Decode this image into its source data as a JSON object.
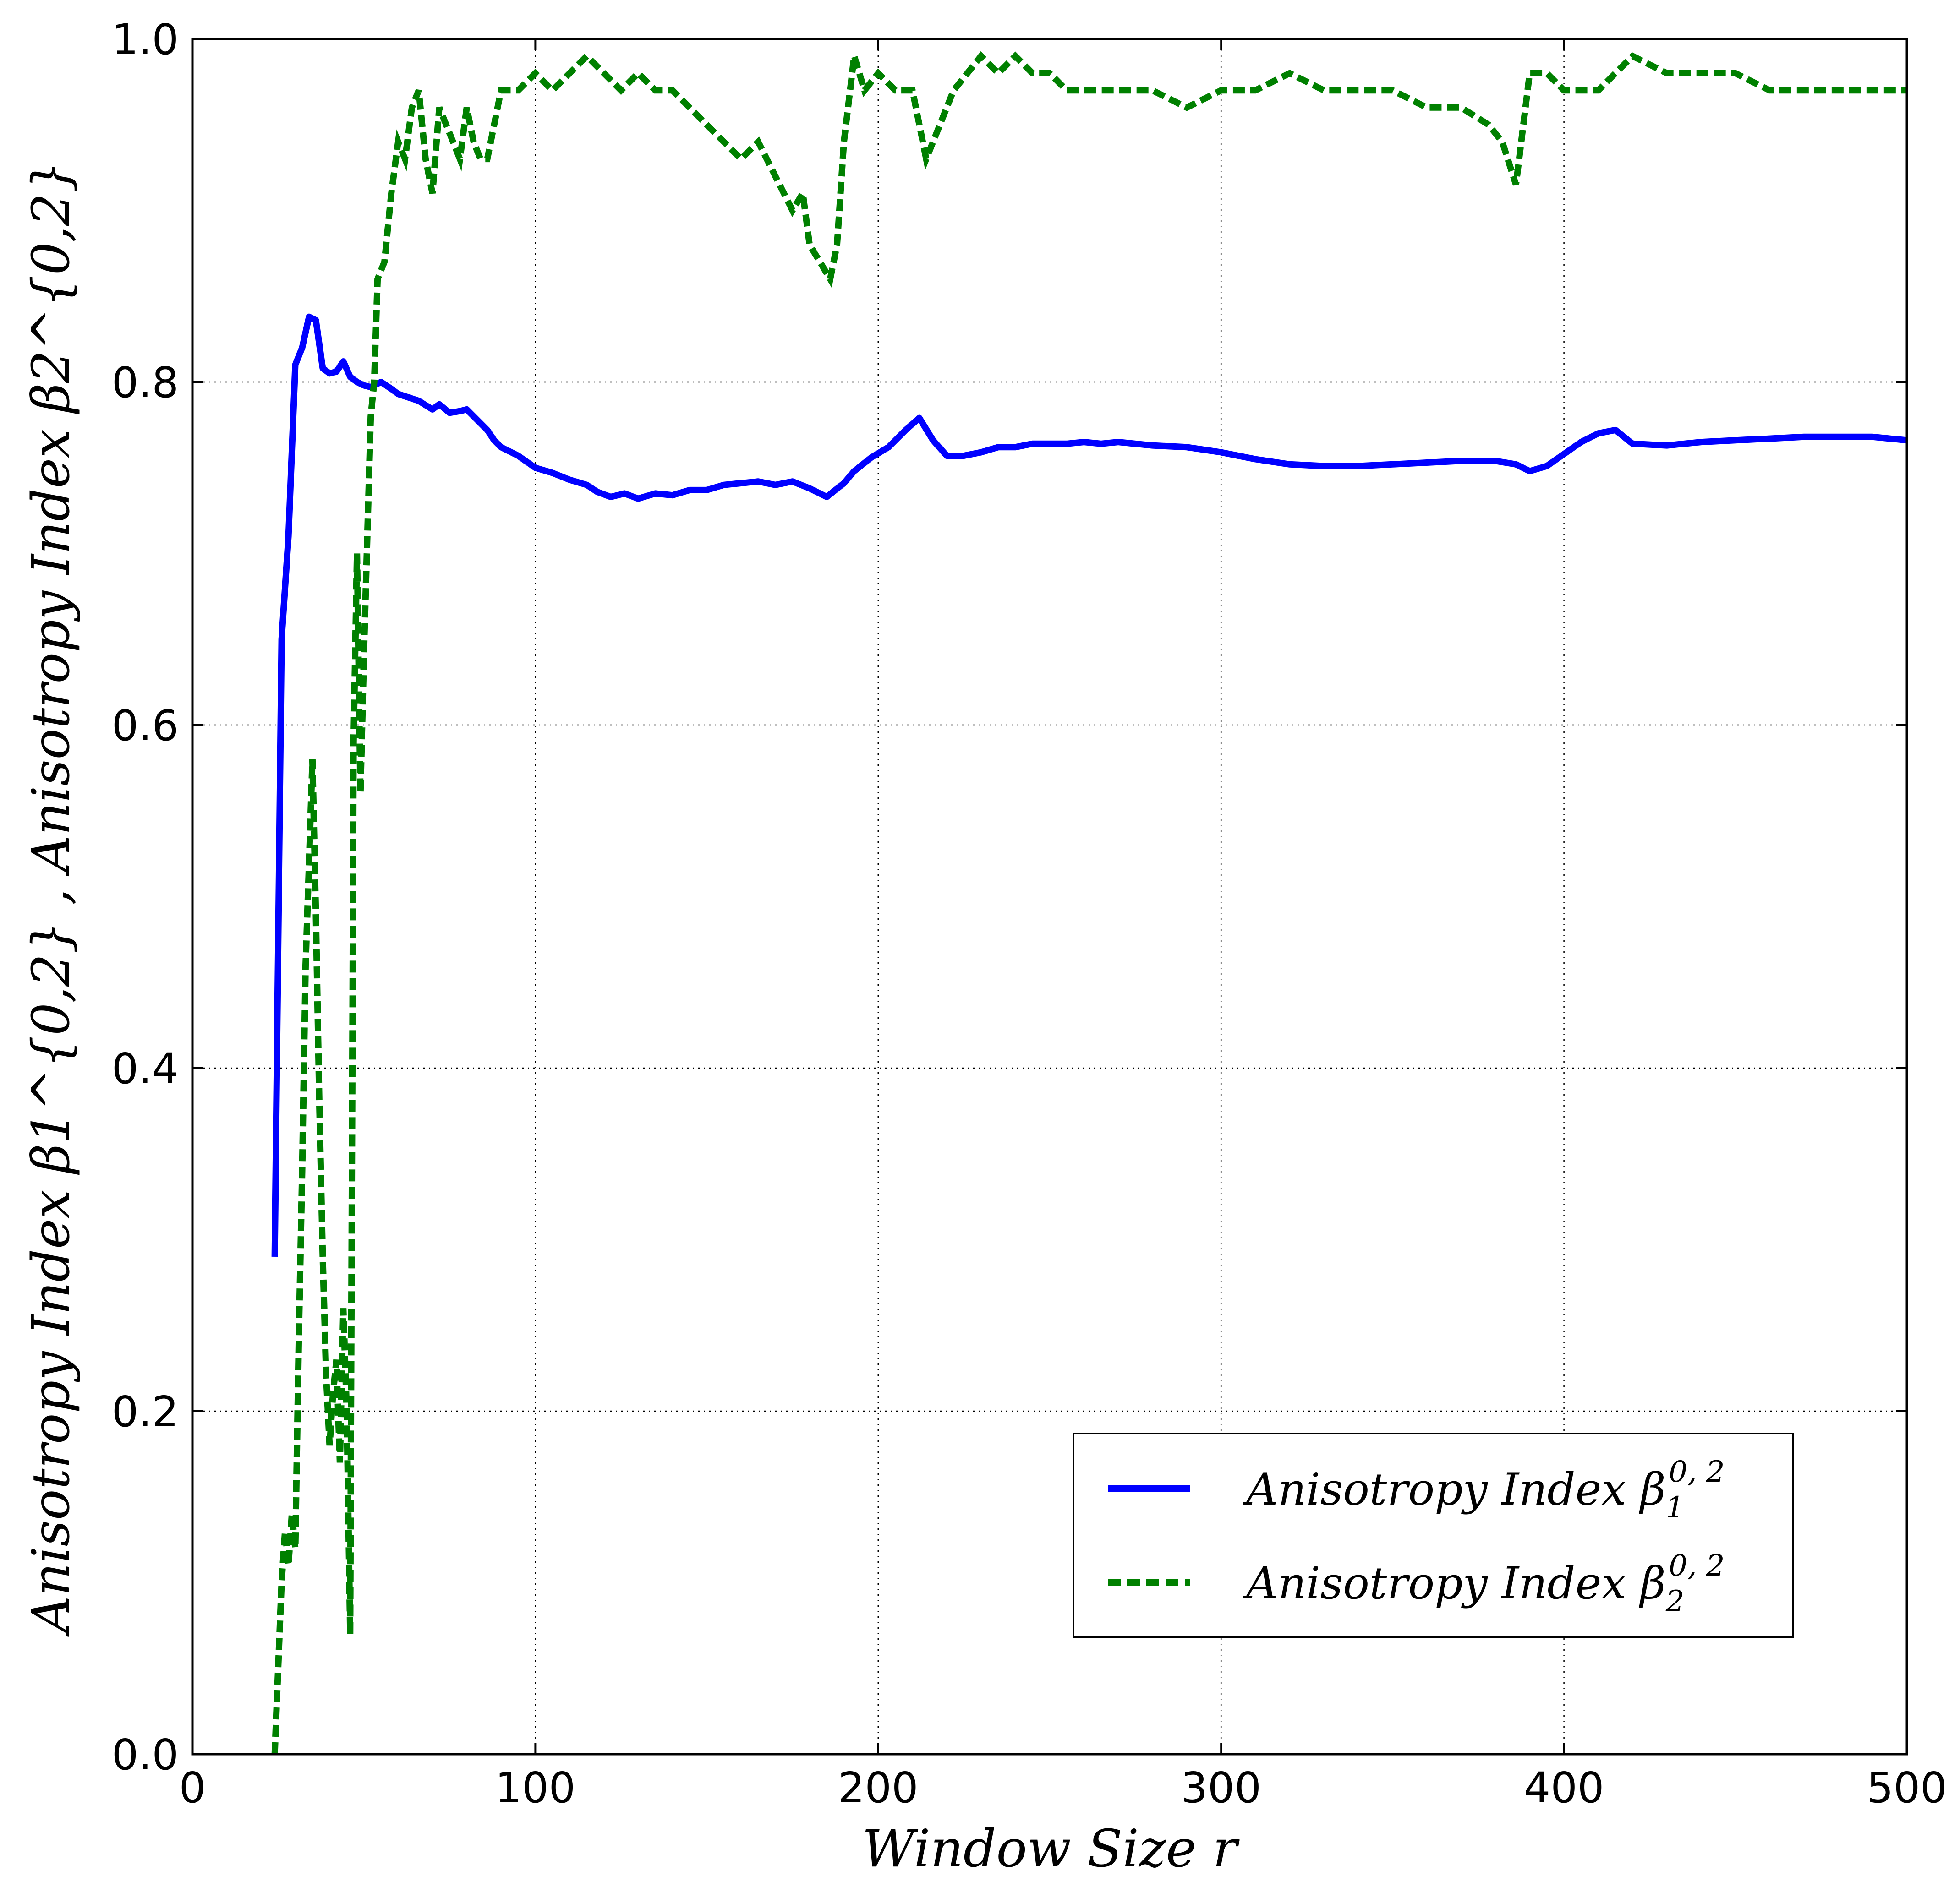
{
  "chart_data": {
    "type": "line",
    "xlabel": "Window Size r",
    "ylabel": "Anisotropy Index β1^{0,2} ,  Anisotropy Index β2^{0,2}",
    "xlim": [
      0,
      500
    ],
    "ylim": [
      0,
      1.0
    ],
    "xticks": [
      0,
      100,
      200,
      300,
      400,
      500
    ],
    "yticks": [
      0.0,
      0.2,
      0.4,
      0.6,
      0.8,
      1.0
    ],
    "xtick_labels": [
      "0",
      "100",
      "200",
      "300",
      "400",
      "500"
    ],
    "ytick_labels": [
      "0.0",
      "0.2",
      "0.4",
      "0.6",
      "0.8",
      "1.0"
    ],
    "grid": true,
    "legend_position": "lower-right",
    "series": [
      {
        "name": "Anisotropy Index β1^{0,2}",
        "label_base": "Anisotropy Index β",
        "label_sub": "1",
        "label_sup": "0, 2",
        "color": "#0000ff",
        "style": "solid",
        "x": [
          24,
          26,
          28,
          30,
          32,
          34,
          36,
          38,
          40,
          42,
          44,
          46,
          48,
          50,
          52,
          55,
          58,
          60,
          63,
          66,
          70,
          72,
          75,
          78,
          80,
          84,
          86,
          88,
          90,
          95,
          100,
          105,
          110,
          115,
          118,
          122,
          126,
          130,
          135,
          140,
          145,
          150,
          155,
          160,
          165,
          170,
          175,
          180,
          185,
          190,
          193,
          198,
          203,
          208,
          212,
          216,
          220,
          225,
          230,
          235,
          240,
          245,
          250,
          255,
          260,
          265,
          270,
          280,
          290,
          300,
          310,
          320,
          330,
          340,
          350,
          360,
          370,
          380,
          386,
          390,
          395,
          400,
          405,
          410,
          415,
          420,
          430,
          440,
          450,
          460,
          470,
          480,
          490,
          500
        ],
        "y": [
          0.29,
          0.65,
          0.71,
          0.81,
          0.82,
          0.838,
          0.836,
          0.808,
          0.805,
          0.806,
          0.812,
          0.803,
          0.8,
          0.798,
          0.797,
          0.8,
          0.796,
          0.793,
          0.791,
          0.789,
          0.784,
          0.787,
          0.782,
          0.783,
          0.784,
          0.776,
          0.772,
          0.766,
          0.762,
          0.757,
          0.75,
          0.747,
          0.743,
          0.74,
          0.736,
          0.733,
          0.735,
          0.732,
          0.735,
          0.734,
          0.737,
          0.737,
          0.74,
          0.741,
          0.742,
          0.74,
          0.742,
          0.738,
          0.733,
          0.741,
          0.748,
          0.756,
          0.762,
          0.772,
          0.779,
          0.766,
          0.757,
          0.757,
          0.759,
          0.762,
          0.762,
          0.764,
          0.764,
          0.764,
          0.765,
          0.764,
          0.765,
          0.763,
          0.762,
          0.759,
          0.755,
          0.752,
          0.751,
          0.751,
          0.752,
          0.753,
          0.754,
          0.754,
          0.752,
          0.748,
          0.751,
          0.758,
          0.765,
          0.77,
          0.772,
          0.764,
          0.763,
          0.765,
          0.766,
          0.767,
          0.768,
          0.768,
          0.768,
          0.766
        ]
      },
      {
        "name": "Anisotropy Index β2^{0,2}",
        "label_base": "Anisotropy Index β",
        "label_sub": "2",
        "label_sup": "0, 2",
        "color": "#008000",
        "style": "dashed",
        "x": [
          24,
          26,
          27,
          28,
          29,
          30,
          31,
          32,
          33,
          34,
          35,
          36,
          37,
          38,
          39,
          40,
          41,
          42,
          43,
          44,
          45,
          46,
          47,
          48,
          49,
          50,
          51,
          52,
          53,
          54,
          56,
          58,
          60,
          62,
          64,
          66,
          68,
          70,
          72,
          74,
          76,
          78,
          80,
          82,
          84,
          86,
          88,
          90,
          95,
          100,
          105,
          110,
          115,
          120,
          125,
          130,
          135,
          140,
          145,
          150,
          155,
          160,
          165,
          170,
          175,
          178,
          180,
          183,
          186,
          188,
          190,
          193,
          196,
          200,
          205,
          210,
          214,
          218,
          222,
          226,
          230,
          235,
          240,
          245,
          250,
          255,
          260,
          270,
          280,
          290,
          300,
          310,
          320,
          330,
          340,
          350,
          360,
          370,
          378,
          382,
          386,
          390,
          395,
          400,
          410,
          420,
          430,
          440,
          450,
          460,
          470,
          480,
          490,
          500
        ],
        "y": [
          0.0,
          0.1,
          0.13,
          0.11,
          0.14,
          0.12,
          0.24,
          0.34,
          0.46,
          0.52,
          0.58,
          0.49,
          0.38,
          0.29,
          0.22,
          0.18,
          0.21,
          0.23,
          0.17,
          0.26,
          0.2,
          0.07,
          0.59,
          0.7,
          0.56,
          0.64,
          0.71,
          0.78,
          0.8,
          0.86,
          0.87,
          0.91,
          0.94,
          0.93,
          0.96,
          0.97,
          0.93,
          0.91,
          0.96,
          0.95,
          0.94,
          0.93,
          0.96,
          0.94,
          0.93,
          0.93,
          0.95,
          0.97,
          0.97,
          0.98,
          0.97,
          0.98,
          0.99,
          0.98,
          0.97,
          0.98,
          0.97,
          0.97,
          0.96,
          0.95,
          0.94,
          0.93,
          0.94,
          0.92,
          0.9,
          0.91,
          0.88,
          0.87,
          0.86,
          0.88,
          0.94,
          0.99,
          0.97,
          0.98,
          0.97,
          0.97,
          0.93,
          0.95,
          0.97,
          0.98,
          0.99,
          0.98,
          0.99,
          0.98,
          0.98,
          0.97,
          0.97,
          0.97,
          0.97,
          0.96,
          0.97,
          0.97,
          0.98,
          0.97,
          0.97,
          0.97,
          0.96,
          0.96,
          0.95,
          0.94,
          0.915,
          0.98,
          0.98,
          0.97,
          0.97,
          0.99,
          0.98,
          0.98,
          0.98,
          0.97,
          0.97,
          0.97,
          0.97,
          0.97
        ]
      }
    ]
  }
}
